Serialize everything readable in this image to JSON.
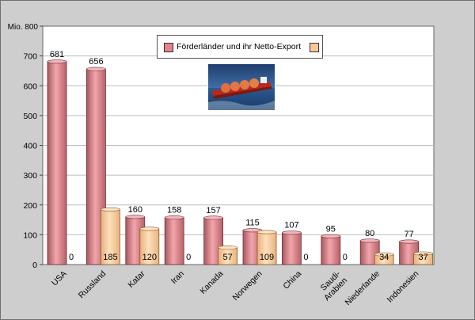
{
  "chart_data": {
    "type": "bar",
    "ylabel": "Mio.",
    "ylim": [
      0,
      800
    ],
    "yticks": [
      0,
      100,
      200,
      300,
      400,
      500,
      600,
      700,
      800
    ],
    "ytick_labels": [
      "0",
      "100",
      "200",
      "300",
      "400",
      "500",
      "600",
      "700",
      "800"
    ],
    "categories": [
      "USA",
      "Russland",
      "Katar",
      "Iran",
      "Kanada",
      "Norwegen",
      "China",
      "Saudi-\nArabien",
      "Niederlande",
      "Indonesien"
    ],
    "series": [
      {
        "name": "Förderländer und ihr Netto-Export",
        "values": [
          681,
          656,
          160,
          158,
          157,
          115,
          107,
          95,
          80,
          77
        ]
      },
      {
        "name": "",
        "values": [
          0,
          185,
          120,
          0,
          57,
          109,
          0,
          0,
          34,
          37
        ]
      }
    ],
    "grid": true,
    "legend_position": "top-center"
  },
  "legend": {
    "label": "Förderländer und ihr Netto-Export"
  },
  "image": {
    "icon": "lng-tanker-ship-photo"
  },
  "colors": {
    "series1": "#e8828a",
    "series2": "#f8c898",
    "plot_bg": "#ffffff",
    "frame_bg": "#cecece"
  }
}
